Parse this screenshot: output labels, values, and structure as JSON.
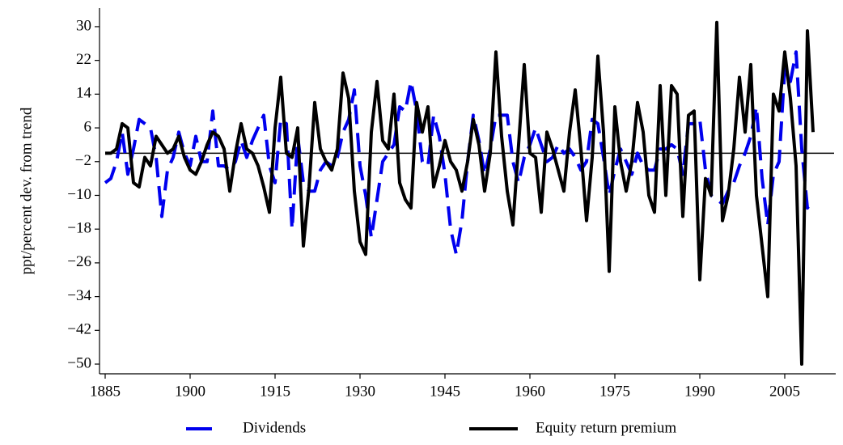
{
  "chart_data": {
    "type": "line",
    "y_label": "ppt/percent dev. from trend",
    "x": [
      1885,
      1886,
      1887,
      1888,
      1889,
      1890,
      1891,
      1892,
      1893,
      1894,
      1895,
      1896,
      1897,
      1898,
      1899,
      1900,
      1901,
      1902,
      1903,
      1904,
      1905,
      1906,
      1907,
      1908,
      1909,
      1910,
      1911,
      1912,
      1913,
      1914,
      1915,
      1916,
      1917,
      1918,
      1919,
      1920,
      1921,
      1922,
      1923,
      1924,
      1925,
      1926,
      1927,
      1928,
      1929,
      1930,
      1931,
      1932,
      1933,
      1934,
      1935,
      1936,
      1937,
      1938,
      1939,
      1940,
      1941,
      1942,
      1943,
      1944,
      1945,
      1946,
      1947,
      1948,
      1949,
      1950,
      1951,
      1952,
      1953,
      1954,
      1955,
      1956,
      1957,
      1958,
      1959,
      1960,
      1961,
      1962,
      1963,
      1964,
      1965,
      1966,
      1967,
      1968,
      1969,
      1970,
      1971,
      1972,
      1973,
      1974,
      1975,
      1976,
      1977,
      1978,
      1979,
      1980,
      1981,
      1982,
      1983,
      1984,
      1985,
      1986,
      1987,
      1988,
      1989,
      1990,
      1991,
      1992,
      1993,
      1994,
      1995,
      1996,
      1997,
      1998,
      1999,
      2000,
      2001,
      2002,
      2003,
      2004,
      2005,
      2006,
      2007,
      2008,
      2009,
      2010
    ],
    "series": [
      {
        "name": "Dividends",
        "color": "#0000ee",
        "dashed": true,
        "values": [
          -7,
          -6,
          -2,
          5,
          -5,
          1,
          8,
          7,
          6,
          -1,
          -15,
          -4,
          -1,
          5,
          0,
          -3,
          4,
          -2,
          -2,
          10,
          -3,
          -3,
          -4,
          -2,
          3,
          -1,
          3,
          6,
          9,
          -3,
          -7,
          8,
          7,
          -18,
          4,
          -7,
          -9,
          -9,
          -4,
          -2,
          -3,
          -1,
          5,
          8,
          15,
          -3,
          -10,
          -20,
          -11,
          -2,
          0,
          2,
          11,
          10,
          17,
          10,
          -2,
          -3,
          9,
          4,
          -5,
          -18,
          -24,
          -16,
          -2,
          9,
          3,
          -5,
          1,
          9,
          9,
          9,
          -2,
          -7,
          -1,
          2,
          6,
          2,
          -2,
          -1,
          2,
          0,
          1,
          -1,
          -4,
          -2,
          8,
          7,
          -1,
          -10,
          -4,
          1,
          -2,
          -5,
          0,
          -3,
          -4,
          -4,
          1,
          1,
          2,
          1,
          -5,
          7,
          7,
          8,
          -4,
          -10,
          -11,
          -12,
          -9,
          -7,
          -3,
          0,
          4,
          11,
          -6,
          -17,
          -5,
          -2,
          20,
          17,
          24,
          1,
          -13,
          -11
        ]
      },
      {
        "name": "Equity return premium",
        "color": "#000000",
        "dashed": false,
        "values": [
          0,
          0,
          1,
          7,
          6,
          -7,
          -8,
          -1,
          -3,
          4,
          2,
          0,
          1,
          4,
          -1,
          -4,
          -5,
          -2,
          2,
          5,
          4,
          1,
          -9,
          0,
          7,
          1,
          0,
          -3,
          -8,
          -14,
          6,
          18,
          0,
          -1,
          6,
          -22,
          -8,
          12,
          1,
          -2,
          -4,
          1,
          19,
          13,
          -9,
          -21,
          -24,
          5,
          17,
          3,
          1,
          14,
          -7,
          -11,
          -13,
          12,
          5,
          11,
          -8,
          -3,
          3,
          -2,
          -4,
          -9,
          -2,
          8,
          2,
          -9,
          0,
          24,
          4,
          -9,
          -17,
          2,
          21,
          0,
          -1,
          -14,
          5,
          1,
          -4,
          -9,
          5,
          15,
          1,
          -16,
          -1,
          23,
          5,
          -28,
          11,
          -2,
          -9,
          -2,
          12,
          5,
          -10,
          -14,
          16,
          -10,
          16,
          14,
          -15,
          9,
          10,
          -30,
          -6,
          -10,
          31,
          -16,
          -10,
          1,
          18,
          5,
          21,
          -10,
          -22,
          -34,
          14,
          10,
          24,
          13,
          -3,
          -50,
          29,
          5
        ]
      }
    ],
    "xlim": [
      1884,
      2014
    ],
    "xticks": [
      1885,
      1900,
      1915,
      1930,
      1945,
      1960,
      1975,
      1990,
      2005
    ],
    "ylim": [
      -52.3,
      34.4
    ],
    "yticks": [
      {
        "value": -50,
        "label": "−50"
      },
      {
        "value": -42,
        "label": "−42"
      },
      {
        "value": -34,
        "label": "−34"
      },
      {
        "value": -26,
        "label": "−26"
      },
      {
        "value": -18,
        "label": "−18"
      },
      {
        "value": -10,
        "label": "−10"
      },
      {
        "value": -2,
        "label": "−2"
      },
      6,
      14,
      22,
      30
    ],
    "legend": "bottom"
  }
}
